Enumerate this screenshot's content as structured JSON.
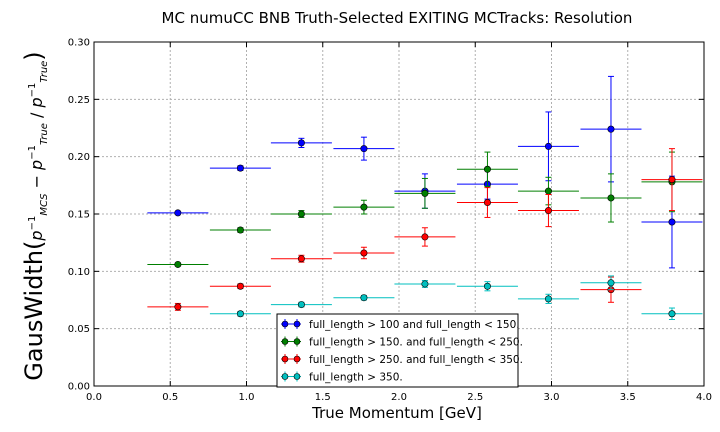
{
  "chart_data": {
    "type": "scatter",
    "title": "MC numuCC BNB Truth-Selected EXITING MCTracks: Resolution",
    "xlabel": "True Momentum [GeV]",
    "ylabel_prefix": "GausWidth(",
    "ylabel_suffix": ")",
    "xlim": [
      0.0,
      4.0
    ],
    "ylim": [
      0.0,
      0.3
    ],
    "x_ticks": [
      "0.0",
      "0.5",
      "1.0",
      "1.5",
      "2.0",
      "2.5",
      "3.0",
      "3.5",
      "4.0"
    ],
    "y_ticks": [
      "0.00",
      "0.05",
      "0.10",
      "0.15",
      "0.20",
      "0.25",
      "0.30"
    ],
    "grid": true,
    "legend_position": "bottom-center",
    "series": [
      {
        "name": "full_length > 100 and full_length < 150.",
        "color": "#0000ff",
        "points": [
          {
            "x": 0.55,
            "xerr": 0.2,
            "y": 0.151,
            "yerr": 0.001
          },
          {
            "x": 0.96,
            "xerr": 0.2,
            "y": 0.19,
            "yerr": 0.002
          },
          {
            "x": 1.36,
            "xerr": 0.2,
            "y": 0.212,
            "yerr": 0.004
          },
          {
            "x": 1.77,
            "xerr": 0.2,
            "y": 0.207,
            "yerr": 0.01
          },
          {
            "x": 2.17,
            "xerr": 0.2,
            "y": 0.17,
            "yerr": 0.015
          },
          {
            "x": 2.58,
            "xerr": 0.2,
            "y": 0.176,
            "yerr": 0.013
          },
          {
            "x": 2.98,
            "xerr": 0.2,
            "y": 0.209,
            "yerr": 0.03
          },
          {
            "x": 3.39,
            "xerr": 0.2,
            "y": 0.224,
            "yerr": 0.046
          },
          {
            "x": 3.79,
            "xerr": 0.2,
            "y": 0.143,
            "yerr": 0.04
          }
        ]
      },
      {
        "name": "full_length > 150. and full_length < 250.",
        "color": "#007f00",
        "points": [
          {
            "x": 0.55,
            "xerr": 0.2,
            "y": 0.106,
            "yerr": 0.001
          },
          {
            "x": 0.96,
            "xerr": 0.2,
            "y": 0.136,
            "yerr": 0.002
          },
          {
            "x": 1.36,
            "xerr": 0.2,
            "y": 0.15,
            "yerr": 0.003
          },
          {
            "x": 1.77,
            "xerr": 0.2,
            "y": 0.156,
            "yerr": 0.006
          },
          {
            "x": 2.17,
            "xerr": 0.2,
            "y": 0.168,
            "yerr": 0.013
          },
          {
            "x": 2.58,
            "xerr": 0.2,
            "y": 0.189,
            "yerr": 0.015
          },
          {
            "x": 2.98,
            "xerr": 0.2,
            "y": 0.17,
            "yerr": 0.012
          },
          {
            "x": 3.39,
            "xerr": 0.2,
            "y": 0.164,
            "yerr": 0.021
          },
          {
            "x": 3.79,
            "xerr": 0.2,
            "y": 0.178,
            "yerr": 0.026
          }
        ]
      },
      {
        "name": "full_length > 250. and full_length < 350.",
        "color": "#ff0000",
        "points": [
          {
            "x": 0.55,
            "xerr": 0.2,
            "y": 0.069,
            "yerr": 0.003
          },
          {
            "x": 0.96,
            "xerr": 0.2,
            "y": 0.087,
            "yerr": 0.002
          },
          {
            "x": 1.36,
            "xerr": 0.2,
            "y": 0.111,
            "yerr": 0.003
          },
          {
            "x": 1.77,
            "xerr": 0.2,
            "y": 0.116,
            "yerr": 0.005
          },
          {
            "x": 2.17,
            "xerr": 0.2,
            "y": 0.13,
            "yerr": 0.008
          },
          {
            "x": 2.58,
            "xerr": 0.2,
            "y": 0.16,
            "yerr": 0.013
          },
          {
            "x": 2.98,
            "xerr": 0.2,
            "y": 0.153,
            "yerr": 0.014
          },
          {
            "x": 3.39,
            "xerr": 0.2,
            "y": 0.084,
            "yerr": 0.011
          },
          {
            "x": 3.79,
            "xerr": 0.2,
            "y": 0.18,
            "yerr": 0.027
          }
        ]
      },
      {
        "name": "full_length > 350.",
        "color": "#00bfbf",
        "points": [
          {
            "x": 0.96,
            "xerr": 0.2,
            "y": 0.063,
            "yerr": 0.002
          },
          {
            "x": 1.36,
            "xerr": 0.2,
            "y": 0.071,
            "yerr": 0.002
          },
          {
            "x": 1.77,
            "xerr": 0.2,
            "y": 0.077,
            "yerr": 0.002
          },
          {
            "x": 2.17,
            "xerr": 0.2,
            "y": 0.089,
            "yerr": 0.003
          },
          {
            "x": 2.58,
            "xerr": 0.2,
            "y": 0.087,
            "yerr": 0.004
          },
          {
            "x": 2.98,
            "xerr": 0.2,
            "y": 0.076,
            "yerr": 0.004
          },
          {
            "x": 3.39,
            "xerr": 0.2,
            "y": 0.09,
            "yerr": 0.006
          },
          {
            "x": 3.79,
            "xerr": 0.2,
            "y": 0.063,
            "yerr": 0.005
          }
        ]
      }
    ]
  }
}
